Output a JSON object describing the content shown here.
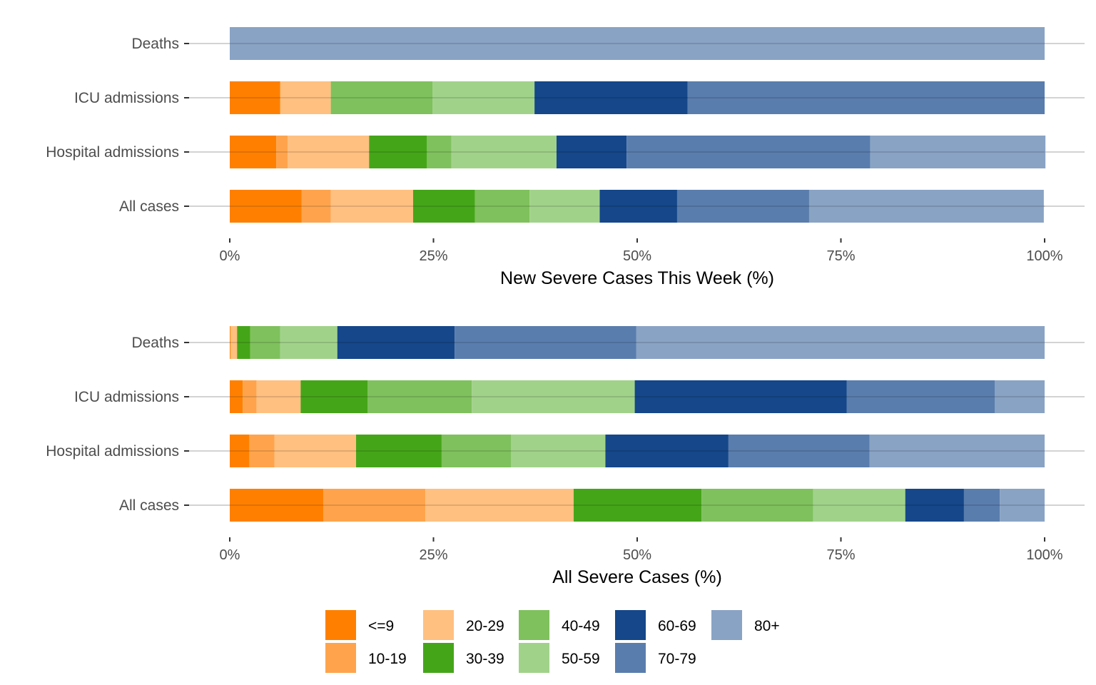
{
  "chart_data": {
    "type": "bar",
    "orientation": "horizontal",
    "stacked": "percent",
    "categories": [
      "Deaths",
      "ICU admissions",
      "Hospital admissions",
      "All cases"
    ],
    "legend": {
      "placement": "bottom",
      "entries": [
        "<=9",
        "10-19",
        "20-29",
        "30-39",
        "40-49",
        "50-59",
        "60-69",
        "70-79",
        "80+"
      ],
      "colors": [
        "#FF8000",
        "#FFA44C",
        "#FFC080",
        "#45A519",
        "#7FC15D",
        "#A1D28A",
        "#15478A",
        "#597DAD",
        "#89A3C4"
      ]
    },
    "panels": [
      {
        "xlabel": "New Severe Cases This Week (%)",
        "xlim": [
          0,
          100
        ],
        "xticks": [
          "0%",
          "25%",
          "50%",
          "75%",
          "100%"
        ],
        "xtick_values": [
          0,
          25,
          50,
          75,
          100
        ],
        "grid": "horizontal-major",
        "series": [
          {
            "name": "<=9",
            "values": [
              0,
              6.2,
              5.7,
              8.8
            ]
          },
          {
            "name": "10-19",
            "values": [
              0,
              0,
              1.4,
              3.6
            ]
          },
          {
            "name": "20-29",
            "values": [
              0,
              6.2,
              10.0,
              10.1
            ]
          },
          {
            "name": "30-39",
            "values": [
              0,
              0,
              7.1,
              7.6
            ]
          },
          {
            "name": "40-49",
            "values": [
              0,
              12.5,
              3.0,
              6.7
            ]
          },
          {
            "name": "50-59",
            "values": [
              0,
              12.5,
              12.9,
              8.6
            ]
          },
          {
            "name": "60-69",
            "values": [
              0,
              18.8,
              8.6,
              9.5
            ]
          },
          {
            "name": "70-79",
            "values": [
              0,
              43.8,
              29.9,
              16.2
            ]
          },
          {
            "name": "80+",
            "values": [
              100,
              0,
              21.5,
              28.8
            ]
          }
        ]
      },
      {
        "xlabel": "All Severe Cases (%)",
        "xlim": [
          0,
          100
        ],
        "xticks": [
          "0%",
          "25%",
          "50%",
          "75%",
          "100%"
        ],
        "xtick_values": [
          0,
          25,
          50,
          75,
          100
        ],
        "grid": "horizontal-major",
        "series": [
          {
            "name": "<=9",
            "values": [
              0.1,
              1.6,
              2.4,
              11.5
            ]
          },
          {
            "name": "10-19",
            "values": [
              0,
              1.7,
              3.1,
              12.5
            ]
          },
          {
            "name": "20-29",
            "values": [
              0.8,
              5.4,
              10.0,
              18.2
            ]
          },
          {
            "name": "30-39",
            "values": [
              1.6,
              8.2,
              10.5,
              15.7
            ]
          },
          {
            "name": "40-49",
            "values": [
              3.7,
              12.8,
              8.5,
              13.7
            ]
          },
          {
            "name": "50-59",
            "values": [
              7.0,
              20.0,
              11.6,
              11.3
            ]
          },
          {
            "name": "60-69",
            "values": [
              14.4,
              26.0,
              15.1,
              7.2
            ]
          },
          {
            "name": "70-79",
            "values": [
              22.3,
              18.2,
              17.3,
              4.4
            ]
          },
          {
            "name": "80+",
            "values": [
              50.1,
              6.1,
              21.5,
              5.5
            ]
          }
        ]
      }
    ]
  }
}
